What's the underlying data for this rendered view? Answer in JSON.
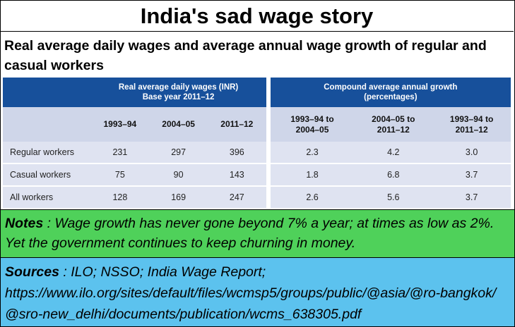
{
  "title": "India's sad wage story",
  "subtitle": "Real average daily wages and average annual wage growth of regular and casual workers",
  "table": {
    "group_left_line1": "Real average daily wages (INR)",
    "group_left_line2": "Base year 2011–12",
    "group_right_line1": "Compound average annual growth",
    "group_right_line2": "(percentages)",
    "columns": [
      "1993–94",
      "2004–05",
      "2011–12",
      "1993–94 to 2004–05",
      "2004–05 to 2011–12",
      "1993–94 to 2011–12"
    ],
    "rows": [
      {
        "label": "Regular workers",
        "values": [
          "231",
          "297",
          "396",
          "2.3",
          "4.2",
          "3.0"
        ]
      },
      {
        "label": "Casual workers",
        "values": [
          "75",
          "90",
          "143",
          "1.8",
          "6.8",
          "3.7"
        ]
      },
      {
        "label": "All workers",
        "values": [
          "128",
          "169",
          "247",
          "2.6",
          "5.6",
          "3.7"
        ]
      }
    ]
  },
  "notes": {
    "label": "Notes",
    "text": " :  Wage growth has never gone beyond 7% a year; at times as low as 2%.  Yet the government continues to  keep churning in money."
  },
  "sources": {
    "label": "Sources",
    "text": " : ILO; NSSO; India Wage Report;",
    "url": "https://www.ilo.org/sites/default/files/wcmsp5/groups/public/@asia/@ro-bangkok/@sro-new_delhi/documents/publication/wcms_638305.pdf"
  },
  "colors": {
    "header_blue": "#17509b",
    "notes_green": "#4fd15a",
    "sources_blue": "#5cc2ee"
  }
}
